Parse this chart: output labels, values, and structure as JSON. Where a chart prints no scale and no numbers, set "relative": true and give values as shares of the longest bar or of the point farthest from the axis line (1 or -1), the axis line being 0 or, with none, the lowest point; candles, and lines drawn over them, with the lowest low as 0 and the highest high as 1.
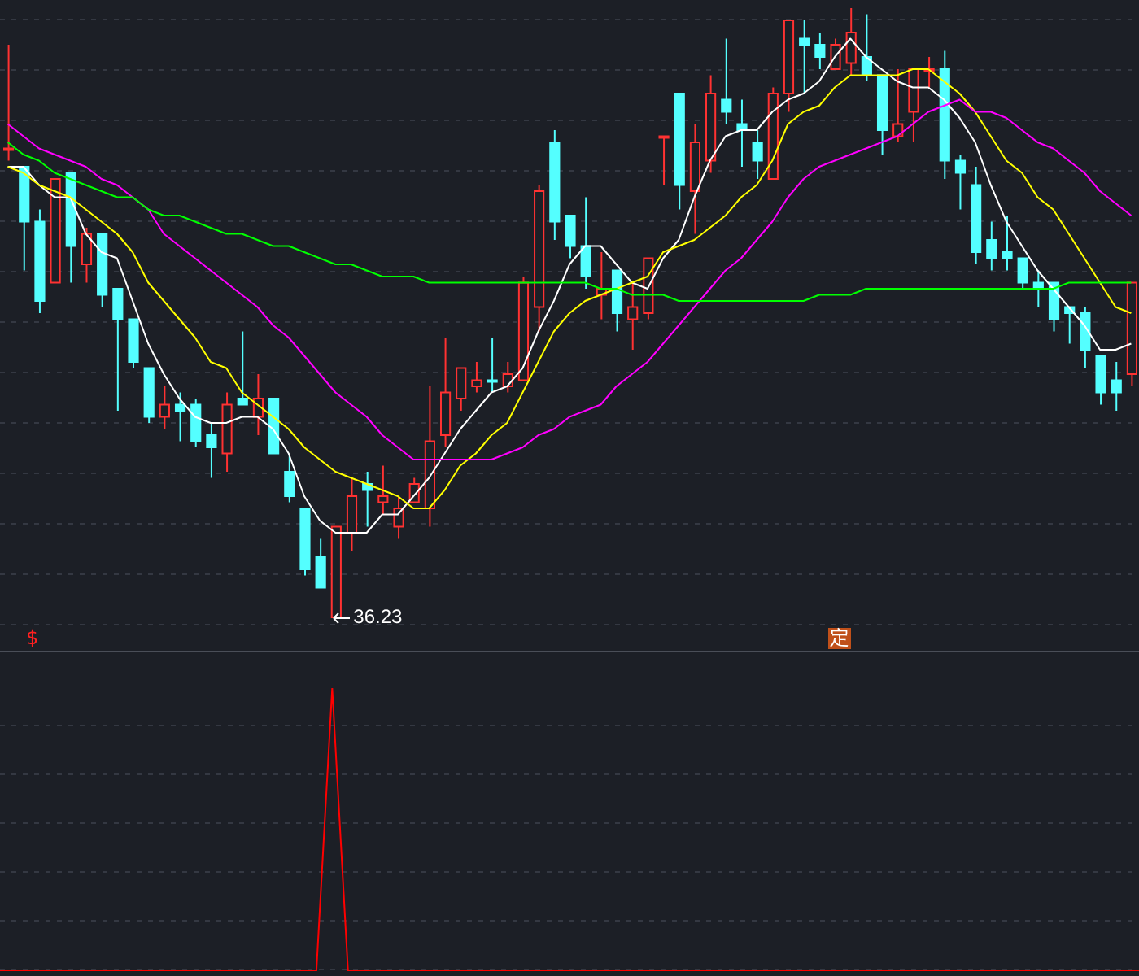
{
  "chart_data": [
    {
      "type": "candlestick",
      "relative": true,
      "grid": true,
      "categories": [
        null,
        null,
        null,
        null,
        null,
        null,
        null,
        null,
        null,
        null,
        null,
        null,
        null,
        null,
        null,
        null,
        null,
        null,
        null,
        null,
        null,
        null,
        null,
        null,
        null,
        null,
        null,
        null,
        null,
        null,
        null,
        null,
        null,
        null,
        null,
        null,
        null,
        null,
        null,
        null,
        null,
        null,
        null,
        null,
        null,
        null,
        null,
        null,
        null,
        null,
        null,
        null,
        null,
        null,
        null,
        null,
        null,
        null,
        null,
        null,
        null,
        null,
        null,
        null,
        null,
        null,
        null,
        null,
        null,
        null,
        null,
        null,
        null
      ],
      "ohlc": [
        [
          0.77,
          0.94,
          0.75,
          0.77
        ],
        [
          0.74,
          0.74,
          0.57,
          0.65
        ],
        [
          0.65,
          0.67,
          0.5,
          0.52
        ],
        [
          0.55,
          0.72,
          0.55,
          0.72
        ],
        [
          0.73,
          0.73,
          0.55,
          0.61
        ],
        [
          0.58,
          0.64,
          0.55,
          0.63
        ],
        [
          0.63,
          0.63,
          0.51,
          0.53
        ],
        [
          0.54,
          0.54,
          0.34,
          0.49
        ],
        [
          0.49,
          0.49,
          0.41,
          0.42
        ],
        [
          0.41,
          0.41,
          0.32,
          0.33
        ],
        [
          0.33,
          0.38,
          0.31,
          0.35
        ],
        [
          0.35,
          0.37,
          0.29,
          0.34
        ],
        [
          0.35,
          0.36,
          0.28,
          0.29
        ],
        [
          0.3,
          0.32,
          0.23,
          0.28
        ],
        [
          0.27,
          0.37,
          0.24,
          0.35
        ],
        [
          0.36,
          0.47,
          0.35,
          0.35
        ],
        [
          0.33,
          0.4,
          0.3,
          0.36
        ],
        [
          0.36,
          0.36,
          0.27,
          0.27
        ],
        [
          0.24,
          0.27,
          0.19,
          0.2
        ],
        [
          0.18,
          0.18,
          0.07,
          0.08
        ],
        [
          0.1,
          0.13,
          0.05,
          0.05
        ],
        [
          0.0,
          0.15,
          0.0,
          0.15
        ],
        [
          0.14,
          0.23,
          0.11,
          0.2
        ],
        [
          0.22,
          0.24,
          0.15,
          0.21
        ],
        [
          0.19,
          0.25,
          0.17,
          0.2
        ],
        [
          0.15,
          0.2,
          0.13,
          0.18
        ],
        [
          0.19,
          0.23,
          0.19,
          0.22
        ],
        [
          0.18,
          0.38,
          0.15,
          0.29
        ],
        [
          0.3,
          0.46,
          0.28,
          0.37
        ],
        [
          0.36,
          0.41,
          0.34,
          0.41
        ],
        [
          0.38,
          0.42,
          0.37,
          0.39
        ],
        [
          0.39,
          0.46,
          0.37,
          0.39
        ],
        [
          0.38,
          0.42,
          0.37,
          0.4
        ],
        [
          0.39,
          0.56,
          0.39,
          0.55
        ],
        [
          0.51,
          0.71,
          0.47,
          0.7
        ],
        [
          0.78,
          0.8,
          0.62,
          0.65
        ],
        [
          0.66,
          0.66,
          0.59,
          0.61
        ],
        [
          0.61,
          0.69,
          0.54,
          0.56
        ],
        [
          0.53,
          0.6,
          0.49,
          0.54
        ],
        [
          0.57,
          0.57,
          0.47,
          0.5
        ],
        [
          0.49,
          0.55,
          0.44,
          0.51
        ],
        [
          0.5,
          0.59,
          0.49,
          0.59
        ],
        [
          0.79,
          0.79,
          0.71,
          0.79
        ],
        [
          0.86,
          0.86,
          0.67,
          0.71
        ],
        [
          0.7,
          0.81,
          0.63,
          0.78
        ],
        [
          0.75,
          0.89,
          0.73,
          0.86
        ],
        [
          0.85,
          0.95,
          0.81,
          0.83
        ],
        [
          0.81,
          0.85,
          0.74,
          0.8
        ],
        [
          0.78,
          0.8,
          0.72,
          0.75
        ],
        [
          0.72,
          0.87,
          0.72,
          0.86
        ],
        [
          0.86,
          0.98,
          0.83,
          0.98
        ],
        [
          0.95,
          0.98,
          0.86,
          0.94
        ],
        [
          0.94,
          0.96,
          0.9,
          0.92
        ],
        [
          0.9,
          0.95,
          0.9,
          0.94
        ],
        [
          0.91,
          1.0,
          0.89,
          0.96
        ],
        [
          0.92,
          0.99,
          0.88,
          0.89
        ],
        [
          0.89,
          0.89,
          0.76,
          0.8
        ],
        [
          0.79,
          0.9,
          0.78,
          0.81
        ],
        [
          0.83,
          0.9,
          0.78,
          0.9
        ],
        [
          0.9,
          0.92,
          0.87,
          0.9
        ],
        [
          0.9,
          0.93,
          0.72,
          0.75
        ],
        [
          0.75,
          0.76,
          0.67,
          0.73
        ],
        [
          0.71,
          0.74,
          0.58,
          0.6
        ],
        [
          0.62,
          0.65,
          0.57,
          0.59
        ],
        [
          0.6,
          0.66,
          0.57,
          0.59
        ],
        [
          0.59,
          0.59,
          0.54,
          0.55
        ],
        [
          0.55,
          0.57,
          0.51,
          0.54
        ],
        [
          0.55,
          0.55,
          0.47,
          0.49
        ],
        [
          0.51,
          0.51,
          0.45,
          0.5
        ],
        [
          0.5,
          0.51,
          0.41,
          0.44
        ],
        [
          0.43,
          0.43,
          0.35,
          0.37
        ],
        [
          0.39,
          0.42,
          0.34,
          0.37
        ],
        [
          0.4,
          0.55,
          0.38,
          0.55
        ]
      ],
      "colors": [
        "#ff3232",
        "#54ffff",
        "#54ffff",
        "#ff3232",
        "#54ffff",
        "#ff3232",
        "#54ffff",
        "#54ffff",
        "#54ffff",
        "#54ffff",
        "#ff3232",
        "#54ffff",
        "#54ffff",
        "#54ffff",
        "#ff3232",
        "#54ffff",
        "#ff3232",
        "#54ffff",
        "#54ffff",
        "#54ffff",
        "#54ffff",
        "#ff3232",
        "#ff3232",
        "#54ffff",
        "#ff3232",
        "#ff3232",
        "#ff3232",
        "#ff3232",
        "#ff3232",
        "#ff3232",
        "#ff3232",
        "#54ffff",
        "#ff3232",
        "#ff3232",
        "#ff3232",
        "#54ffff",
        "#54ffff",
        "#54ffff",
        "#ff3232",
        "#54ffff",
        "#ff3232",
        "#ff3232",
        "#ff3232",
        "#54ffff",
        "#ff3232",
        "#ff3232",
        "#54ffff",
        "#54ffff",
        "#54ffff",
        "#ff3232",
        "#ff3232",
        "#54ffff",
        "#54ffff",
        "#ff3232",
        "#ff3232",
        "#54ffff",
        "#54ffff",
        "#ff3232",
        "#ff3232",
        "#ff3232",
        "#54ffff",
        "#54ffff",
        "#54ffff",
        "#54ffff",
        "#54ffff",
        "#54ffff",
        "#54ffff",
        "#54ffff",
        "#54ffff",
        "#54ffff",
        "#54ffff",
        "#54ffff",
        "#ff3232"
      ],
      "series": [
        {
          "type": "line",
          "color": "#ffffff",
          "values": [
            0.74,
            0.74,
            0.71,
            0.69,
            0.69,
            0.63,
            0.6,
            0.59,
            0.52,
            0.45,
            0.4,
            0.36,
            0.33,
            0.32,
            0.32,
            0.33,
            0.33,
            0.31,
            0.27,
            0.2,
            0.16,
            0.14,
            0.14,
            0.14,
            0.17,
            0.17,
            0.2,
            0.23,
            0.27,
            0.31,
            0.34,
            0.37,
            0.38,
            0.41,
            0.47,
            0.52,
            0.58,
            0.61,
            0.61,
            0.58,
            0.55,
            0.54,
            0.59,
            0.62,
            0.69,
            0.75,
            0.79,
            0.8,
            0.8,
            0.83,
            0.85,
            0.86,
            0.88,
            0.92,
            0.95,
            0.92,
            0.9,
            0.88,
            0.87,
            0.87,
            0.85,
            0.82,
            0.78,
            0.71,
            0.65,
            0.61,
            0.57,
            0.54,
            0.51,
            0.48,
            0.44,
            0.44,
            0.45
          ]
        },
        {
          "type": "line",
          "color": "#ffff00",
          "values": [
            0.74,
            0.73,
            0.71,
            0.7,
            0.69,
            0.67,
            0.65,
            0.63,
            0.6,
            0.55,
            0.52,
            0.49,
            0.46,
            0.42,
            0.41,
            0.37,
            0.35,
            0.33,
            0.31,
            0.28,
            0.26,
            0.24,
            0.23,
            0.22,
            0.21,
            0.2,
            0.18,
            0.18,
            0.21,
            0.25,
            0.27,
            0.3,
            0.32,
            0.37,
            0.42,
            0.47,
            0.5,
            0.52,
            0.53,
            0.54,
            0.55,
            0.56,
            0.6,
            0.61,
            0.62,
            0.64,
            0.66,
            0.69,
            0.71,
            0.75,
            0.81,
            0.83,
            0.84,
            0.87,
            0.89,
            0.89,
            0.89,
            0.89,
            0.9,
            0.9,
            0.88,
            0.86,
            0.83,
            0.79,
            0.75,
            0.73,
            0.69,
            0.67,
            0.63,
            0.59,
            0.55,
            0.51,
            0.5
          ]
        },
        {
          "type": "line",
          "color": "#ff00ff",
          "values": [
            0.81,
            0.79,
            0.77,
            0.76,
            0.75,
            0.74,
            0.72,
            0.71,
            0.69,
            0.67,
            0.63,
            0.61,
            0.59,
            0.57,
            0.55,
            0.53,
            0.51,
            0.48,
            0.46,
            0.43,
            0.4,
            0.37,
            0.35,
            0.33,
            0.3,
            0.28,
            0.26,
            0.26,
            0.26,
            0.26,
            0.26,
            0.26,
            0.27,
            0.28,
            0.3,
            0.31,
            0.33,
            0.34,
            0.35,
            0.38,
            0.4,
            0.42,
            0.45,
            0.48,
            0.51,
            0.54,
            0.57,
            0.59,
            0.62,
            0.65,
            0.69,
            0.72,
            0.74,
            0.75,
            0.76,
            0.77,
            0.78,
            0.79,
            0.81,
            0.83,
            0.84,
            0.85,
            0.83,
            0.83,
            0.82,
            0.8,
            0.78,
            0.77,
            0.75,
            0.73,
            0.7,
            0.68,
            0.66
          ]
        },
        {
          "type": "line",
          "color": "#00ff00",
          "values": [
            0.78,
            0.76,
            0.75,
            0.73,
            0.72,
            0.71,
            0.7,
            0.69,
            0.69,
            0.67,
            0.66,
            0.66,
            0.65,
            0.64,
            0.63,
            0.63,
            0.62,
            0.61,
            0.61,
            0.6,
            0.59,
            0.58,
            0.58,
            0.57,
            0.56,
            0.56,
            0.56,
            0.55,
            0.55,
            0.55,
            0.55,
            0.55,
            0.55,
            0.55,
            0.55,
            0.55,
            0.55,
            0.55,
            0.54,
            0.54,
            0.53,
            0.53,
            0.53,
            0.52,
            0.52,
            0.52,
            0.52,
            0.52,
            0.52,
            0.52,
            0.52,
            0.52,
            0.53,
            0.53,
            0.53,
            0.54,
            0.54,
            0.54,
            0.54,
            0.54,
            0.54,
            0.54,
            0.54,
            0.54,
            0.54,
            0.54,
            0.54,
            0.54,
            0.55,
            0.55,
            0.55,
            0.55,
            0.55
          ]
        }
      ],
      "annotations": [
        "36.23",
        "$",
        "定"
      ]
    },
    {
      "type": "line",
      "relative": true,
      "grid": true,
      "categories": [
        null,
        null,
        null,
        null,
        null,
        null,
        null,
        null,
        null,
        null,
        null,
        null,
        null,
        null,
        null,
        null,
        null,
        null,
        null,
        null,
        null,
        null,
        null,
        null,
        null,
        null,
        null,
        null,
        null,
        null,
        null,
        null,
        null,
        null,
        null,
        null,
        null,
        null,
        null,
        null,
        null,
        null,
        null,
        null,
        null,
        null,
        null,
        null,
        null,
        null,
        null,
        null,
        null,
        null,
        null,
        null,
        null,
        null,
        null,
        null,
        null,
        null,
        null,
        null,
        null,
        null,
        null,
        null,
        null,
        null,
        null,
        null,
        null
      ],
      "series": [
        {
          "color": "#ff0000",
          "values": [
            0,
            0,
            0,
            0,
            0,
            0,
            0,
            0,
            0,
            0,
            0,
            0,
            0,
            0,
            0,
            0,
            0,
            0,
            0,
            0,
            0,
            1,
            0,
            0,
            0,
            0,
            0,
            0,
            0,
            0,
            0,
            0,
            0,
            0,
            0,
            0,
            0,
            0,
            0,
            0,
            0,
            0,
            0,
            0,
            0,
            0,
            0,
            0,
            0,
            0,
            0,
            0,
            0,
            0,
            0,
            0,
            0,
            0,
            0,
            0,
            0,
            0,
            0,
            0,
            0,
            0,
            0,
            0,
            0,
            0,
            0,
            0,
            0
          ]
        }
      ]
    }
  ]
}
